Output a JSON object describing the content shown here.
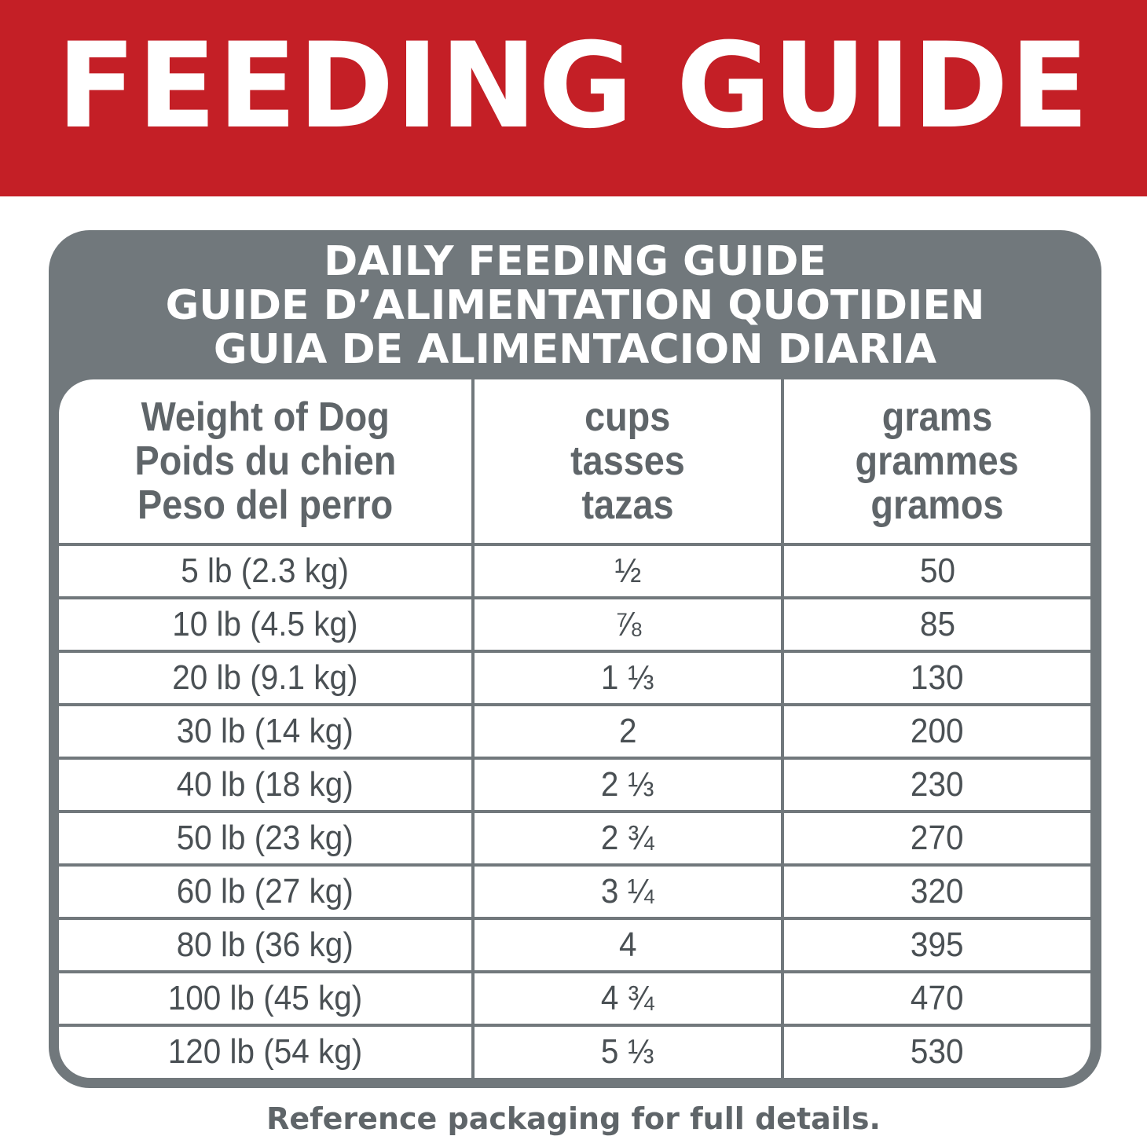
{
  "banner": {
    "title": "FEEDING GUIDE",
    "background_color": "#c41f26"
  },
  "card": {
    "heading_lines": [
      "DAILY FEEDING GUIDE",
      "GUIDE D’ALIMENTATION QUOTIDIEN",
      "GUIA DE ALIMENTACION DIARIA"
    ],
    "background_color": "#71787c"
  },
  "table": {
    "headers": [
      [
        "Weight of Dog",
        "Poids du chien",
        "Peso del perro"
      ],
      [
        "cups",
        "tasses",
        "tazas"
      ],
      [
        "grams",
        "grammes",
        "gramos"
      ]
    ],
    "rows": [
      {
        "weight": "5 lb (2.3 kg)",
        "cups": "½",
        "grams": "50"
      },
      {
        "weight": "10 lb (4.5 kg)",
        "cups": "⅞",
        "grams": "85"
      },
      {
        "weight": "20 lb (9.1 kg)",
        "cups": "1 ⅓",
        "grams": "130"
      },
      {
        "weight": "30 lb (14 kg)",
        "cups": "2",
        "grams": "200"
      },
      {
        "weight": "40 lb (18 kg)",
        "cups": "2 ⅓",
        "grams": "230"
      },
      {
        "weight": "50 lb (23 kg)",
        "cups": "2 ¾",
        "grams": "270"
      },
      {
        "weight": "60 lb (27 kg)",
        "cups": "3 ¼",
        "grams": "320"
      },
      {
        "weight": "80 lb (36 kg)",
        "cups": "4",
        "grams": "395"
      },
      {
        "weight": "100 lb (45 kg)",
        "cups": "4 ¾",
        "grams": "470"
      },
      {
        "weight": "120 lb (54 kg)",
        "cups": "5 ⅓",
        "grams": "530"
      }
    ]
  },
  "footnote": "Reference packaging for full details."
}
